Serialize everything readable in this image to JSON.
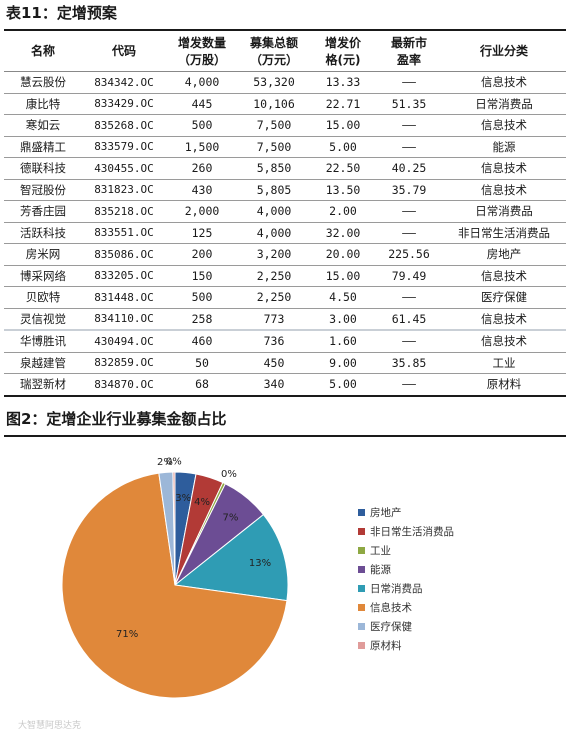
{
  "table_title": "表11：定增预案",
  "table": {
    "headers": [
      "名称",
      "代码",
      "增发数量\n（万股）",
      "募集总额\n（万元）",
      "增发价\n格(元)",
      "最新市\n盈率",
      "行业分类"
    ],
    "rows": [
      [
        "慧云股份",
        "834342.OC",
        "4,000",
        "53,320",
        "13.33",
        "——",
        "信息技术"
      ],
      [
        "康比特",
        "833429.OC",
        "445",
        "10,106",
        "22.71",
        "51.35",
        "日常消费品"
      ],
      [
        "寒如云",
        "835268.OC",
        "500",
        "7,500",
        "15.00",
        "——",
        "信息技术"
      ],
      [
        "鼎盛精工",
        "833579.OC",
        "1,500",
        "7,500",
        "5.00",
        "——",
        "能源"
      ],
      [
        "德联科技",
        "430455.OC",
        "260",
        "5,850",
        "22.50",
        "40.25",
        "信息技术"
      ],
      [
        "智冠股份",
        "831823.OC",
        "430",
        "5,805",
        "13.50",
        "35.79",
        "信息技术"
      ],
      [
        "芳香庄园",
        "835218.OC",
        "2,000",
        "4,000",
        "2.00",
        "——",
        "日常消费品"
      ],
      [
        "活跃科技",
        "833551.OC",
        "125",
        "4,000",
        "32.00",
        "——",
        "非日常生活消费品"
      ],
      [
        "房米网",
        "835086.OC",
        "200",
        "3,200",
        "20.00",
        "225.56",
        "房地产"
      ],
      [
        "博采网络",
        "833205.OC",
        "150",
        "2,250",
        "15.00",
        "79.49",
        "信息技术"
      ],
      [
        "贝欧特",
        "831448.OC",
        "500",
        "2,250",
        "4.50",
        "——",
        "医疗保健"
      ],
      [
        "灵信视觉",
        "834110.OC",
        "258",
        "773",
        "3.00",
        "61.45",
        "信息技术"
      ],
      [
        "华博胜讯",
        "430494.OC",
        "460",
        "736",
        "1.60",
        "——",
        "信息技术"
      ],
      [
        "泉越建管",
        "832859.OC",
        "50",
        "450",
        "9.00",
        "35.85",
        "工业"
      ],
      [
        "瑞翌新材",
        "834870.OC",
        "68",
        "340",
        "5.00",
        "——",
        "原材料"
      ]
    ]
  },
  "figure_title": "图2：定增企业行业募集金额占比",
  "chart_data": {
    "type": "pie",
    "title": "",
    "slices": [
      {
        "label": "房地产",
        "value": 3,
        "display": "3%",
        "color": "#2e5d9c"
      },
      {
        "label": "非日常生活消费品",
        "value": 4,
        "display": "4%",
        "color": "#b23a36"
      },
      {
        "label": "工业",
        "value": 0.4,
        "display": "0%",
        "color": "#8ea843"
      },
      {
        "label": "能源",
        "value": 7,
        "display": "7%",
        "color": "#6c4d94"
      },
      {
        "label": "日常消费品",
        "value": 13,
        "display": "13%",
        "color": "#2f9cb4"
      },
      {
        "label": "信息技术",
        "value": 71,
        "display": "71%",
        "color": "#e0883a"
      },
      {
        "label": "医疗保健",
        "value": 2,
        "display": "2%",
        "color": "#9cb7d8"
      },
      {
        "label": "原材料",
        "value": 0.3,
        "display": "0%",
        "color": "#e09c9a"
      }
    ],
    "legend_position": "right"
  },
  "watermark": "大智慧阿思达克"
}
